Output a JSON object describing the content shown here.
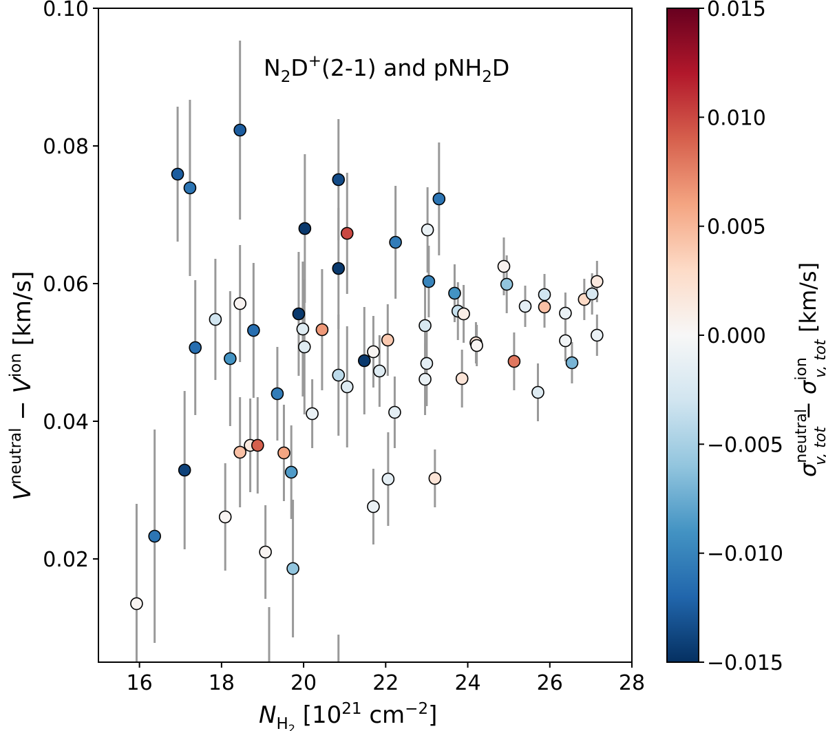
{
  "chart_data": {
    "type": "scatter",
    "annotation": {
      "base1": "N",
      "sub1": "2",
      "base2": "D",
      "sup2": "+",
      "rest": "(2-1) and pNH",
      "sub3": "2",
      "end": "D"
    },
    "xlabel": {
      "main": "N",
      "sub": "H",
      "subsub": "2",
      "rest": " [10",
      "sup": "21",
      "rest2": " cm",
      "sup2": "−2",
      "close": "]"
    },
    "ylabel": {
      "v1": "V",
      "sup1": "neutral",
      "minus": " − ",
      "v2": "V",
      "sup2": "ion",
      "unit": " [km/s]"
    },
    "colorbar_label": {
      "sigma1": "σ",
      "sup1": "neutral",
      "sub1": "v, tot",
      "minus": " − ",
      "sigma2": "σ",
      "sup2": "ion",
      "sub2": "v, tot",
      "unit": " [km/s]"
    },
    "xlim": [
      15,
      28
    ],
    "ylim": [
      0.005,
      0.1
    ],
    "xticks": [
      16,
      18,
      20,
      22,
      24,
      26,
      28
    ],
    "xtick_labels": [
      "16",
      "18",
      "20",
      "22",
      "24",
      "26",
      "28"
    ],
    "yticks": [
      0.02,
      0.04,
      0.06,
      0.08,
      0.1
    ],
    "ytick_labels": [
      "0.02",
      "0.04",
      "0.06",
      "0.08",
      "0.10"
    ],
    "colorbar": {
      "colormap": "RdBu_r",
      "range": [
        -0.015,
        0.015
      ],
      "ticks": [
        -0.015,
        -0.01,
        -0.005,
        0.0,
        0.005,
        0.01,
        0.015
      ],
      "tick_labels": [
        "−0.015",
        "−0.010",
        "−0.005",
        "0.000",
        "0.005",
        "0.010",
        "0.015"
      ]
    },
    "errorbar_color": "#999999",
    "grid": false,
    "points": [
      {
        "x": 15.93,
        "y": 0.0135,
        "err": 0.0145,
        "c": 0.0003
      },
      {
        "x": 16.37,
        "y": 0.0233,
        "err": 0.0155,
        "c": -0.011
      },
      {
        "x": 16.93,
        "y": 0.0759,
        "err": 0.0098,
        "c": -0.0125
      },
      {
        "x": 17.23,
        "y": 0.0739,
        "err": 0.0128,
        "c": -0.011
      },
      {
        "x": 17.1,
        "y": 0.0329,
        "err": 0.0115,
        "c": -0.014
      },
      {
        "x": 17.36,
        "y": 0.0507,
        "err": 0.0098,
        "c": -0.0115
      },
      {
        "x": 17.85,
        "y": 0.0548,
        "err": 0.0088,
        "c": -0.003
      },
      {
        "x": 18.09,
        "y": 0.0261,
        "err": 0.0078,
        "c": 0.0003
      },
      {
        "x": 18.21,
        "y": 0.0491,
        "err": 0.0098,
        "c": -0.009
      },
      {
        "x": 18.45,
        "y": 0.0823,
        "err": 0.013,
        "c": -0.0125
      },
      {
        "x": 18.45,
        "y": 0.0571,
        "err": 0.0085,
        "c": 0.0004
      },
      {
        "x": 18.45,
        "y": 0.0355,
        "err": 0.008,
        "c": 0.0045
      },
      {
        "x": 18.7,
        "y": 0.0365,
        "err": 0.0068,
        "c": 0.0015
      },
      {
        "x": 18.78,
        "y": 0.0532,
        "err": 0.0098,
        "c": -0.0115
      },
      {
        "x": 18.88,
        "y": 0.0365,
        "err": 0.007,
        "c": 0.009
      },
      {
        "x": 19.07,
        "y": 0.021,
        "err": 0.0068,
        "c": 0.0003
      },
      {
        "x": 19.16,
        "y": 0.004,
        "err": 0.009,
        "c": 0.0
      },
      {
        "x": 19.36,
        "y": 0.044,
        "err": 0.0068,
        "c": -0.0105
      },
      {
        "x": 19.52,
        "y": 0.0354,
        "err": 0.007,
        "c": 0.006
      },
      {
        "x": 19.7,
        "y": 0.0326,
        "err": 0.0068,
        "c": -0.0085
      },
      {
        "x": 19.74,
        "y": 0.0186,
        "err": 0.01,
        "c": -0.006
      },
      {
        "x": 19.88,
        "y": 0.0556,
        "err": 0.009,
        "c": -0.0145
      },
      {
        "x": 19.98,
        "y": 0.0534,
        "err": 0.0098,
        "c": -0.002
      },
      {
        "x": 20.03,
        "y": 0.068,
        "err": 0.0108,
        "c": -0.0145
      },
      {
        "x": 20.02,
        "y": 0.0508,
        "err": 0.0098,
        "c": -0.002
      },
      {
        "x": 20.21,
        "y": 0.0411,
        "err": 0.005,
        "c": -0.001
      },
      {
        "x": 20.45,
        "y": 0.0533,
        "err": 0.0088,
        "c": 0.0065
      },
      {
        "x": 20.85,
        "y": 0.0751,
        "err": 0.0088,
        "c": -0.0135
      },
      {
        "x": 20.85,
        "y": 0.0622,
        "err": 0.0088,
        "c": -0.0145
      },
      {
        "x": 20.85,
        "y": 0.0467,
        "err": 0.0088,
        "c": -0.004
      },
      {
        "x": 20.85,
        "y": 0.003,
        "err": 0.006,
        "c": 0.0
      },
      {
        "x": 21.06,
        "y": 0.0673,
        "err": 0.0088,
        "c": 0.01
      },
      {
        "x": 21.06,
        "y": 0.045,
        "err": 0.0088,
        "c": -0.002
      },
      {
        "x": 21.48,
        "y": 0.0488,
        "err": 0.0078,
        "c": -0.0145
      },
      {
        "x": 21.7,
        "y": 0.0501,
        "err": 0.0052,
        "c": 0.0003
      },
      {
        "x": 21.85,
        "y": 0.0473,
        "err": 0.0052,
        "c": -0.002
      },
      {
        "x": 21.7,
        "y": 0.0276,
        "err": 0.0055,
        "c": -0.001
      },
      {
        "x": 22.05,
        "y": 0.0518,
        "err": 0.0052,
        "c": 0.004
      },
      {
        "x": 22.06,
        "y": 0.0316,
        "err": 0.0068,
        "c": -0.0015
      },
      {
        "x": 22.24,
        "y": 0.066,
        "err": 0.0082,
        "c": -0.0105
      },
      {
        "x": 22.22,
        "y": 0.0413,
        "err": 0.0052,
        "c": -0.0015
      },
      {
        "x": 22.96,
        "y": 0.0539,
        "err": 0.0062,
        "c": -0.0025
      },
      {
        "x": 22.96,
        "y": 0.0461,
        "err": 0.0052,
        "c": -0.001
      },
      {
        "x": 23.0,
        "y": 0.0484,
        "err": 0.0062,
        "c": -0.0015
      },
      {
        "x": 23.02,
        "y": 0.0678,
        "err": 0.0062,
        "c": -0.001
      },
      {
        "x": 23.05,
        "y": 0.0603,
        "err": 0.0052,
        "c": -0.01
      },
      {
        "x": 23.2,
        "y": 0.0317,
        "err": 0.0042,
        "c": 0.002
      },
      {
        "x": 23.3,
        "y": 0.0723,
        "err": 0.0082,
        "c": -0.011
      },
      {
        "x": 23.68,
        "y": 0.0586,
        "err": 0.0042,
        "c": -0.009
      },
      {
        "x": 23.76,
        "y": 0.056,
        "err": 0.0042,
        "c": -0.0035
      },
      {
        "x": 23.86,
        "y": 0.0462,
        "err": 0.0042,
        "c": 0.002
      },
      {
        "x": 23.9,
        "y": 0.0556,
        "err": 0.0042,
        "c": 0.001
      },
      {
        "x": 24.2,
        "y": 0.0514,
        "err": 0.003,
        "c": 0.002
      },
      {
        "x": 24.22,
        "y": 0.051,
        "err": 0.003,
        "c": 0.0003
      },
      {
        "x": 24.88,
        "y": 0.0625,
        "err": 0.0042,
        "c": 0.0005
      },
      {
        "x": 24.95,
        "y": 0.0599,
        "err": 0.0042,
        "c": -0.006
      },
      {
        "x": 25.13,
        "y": 0.0487,
        "err": 0.0042,
        "c": 0.008
      },
      {
        "x": 25.4,
        "y": 0.0567,
        "err": 0.003,
        "c": -0.0015
      },
      {
        "x": 25.71,
        "y": 0.0442,
        "err": 0.0042,
        "c": -0.002
      },
      {
        "x": 25.87,
        "y": 0.0584,
        "err": 0.003,
        "c": -0.003
      },
      {
        "x": 25.87,
        "y": 0.0566,
        "err": 0.003,
        "c": 0.0045
      },
      {
        "x": 26.38,
        "y": 0.0557,
        "err": 0.003,
        "c": -0.001
      },
      {
        "x": 26.38,
        "y": 0.0517,
        "err": 0.003,
        "c": -0.0005
      },
      {
        "x": 26.54,
        "y": 0.0485,
        "err": 0.003,
        "c": -0.007
      },
      {
        "x": 26.84,
        "y": 0.0577,
        "err": 0.003,
        "c": 0.003
      },
      {
        "x": 27.03,
        "y": 0.0585,
        "err": 0.003,
        "c": -0.0025
      },
      {
        "x": 27.15,
        "y": 0.0603,
        "err": 0.003,
        "c": 0.0015
      },
      {
        "x": 27.15,
        "y": 0.0525,
        "err": 0.003,
        "c": -0.001
      }
    ]
  }
}
